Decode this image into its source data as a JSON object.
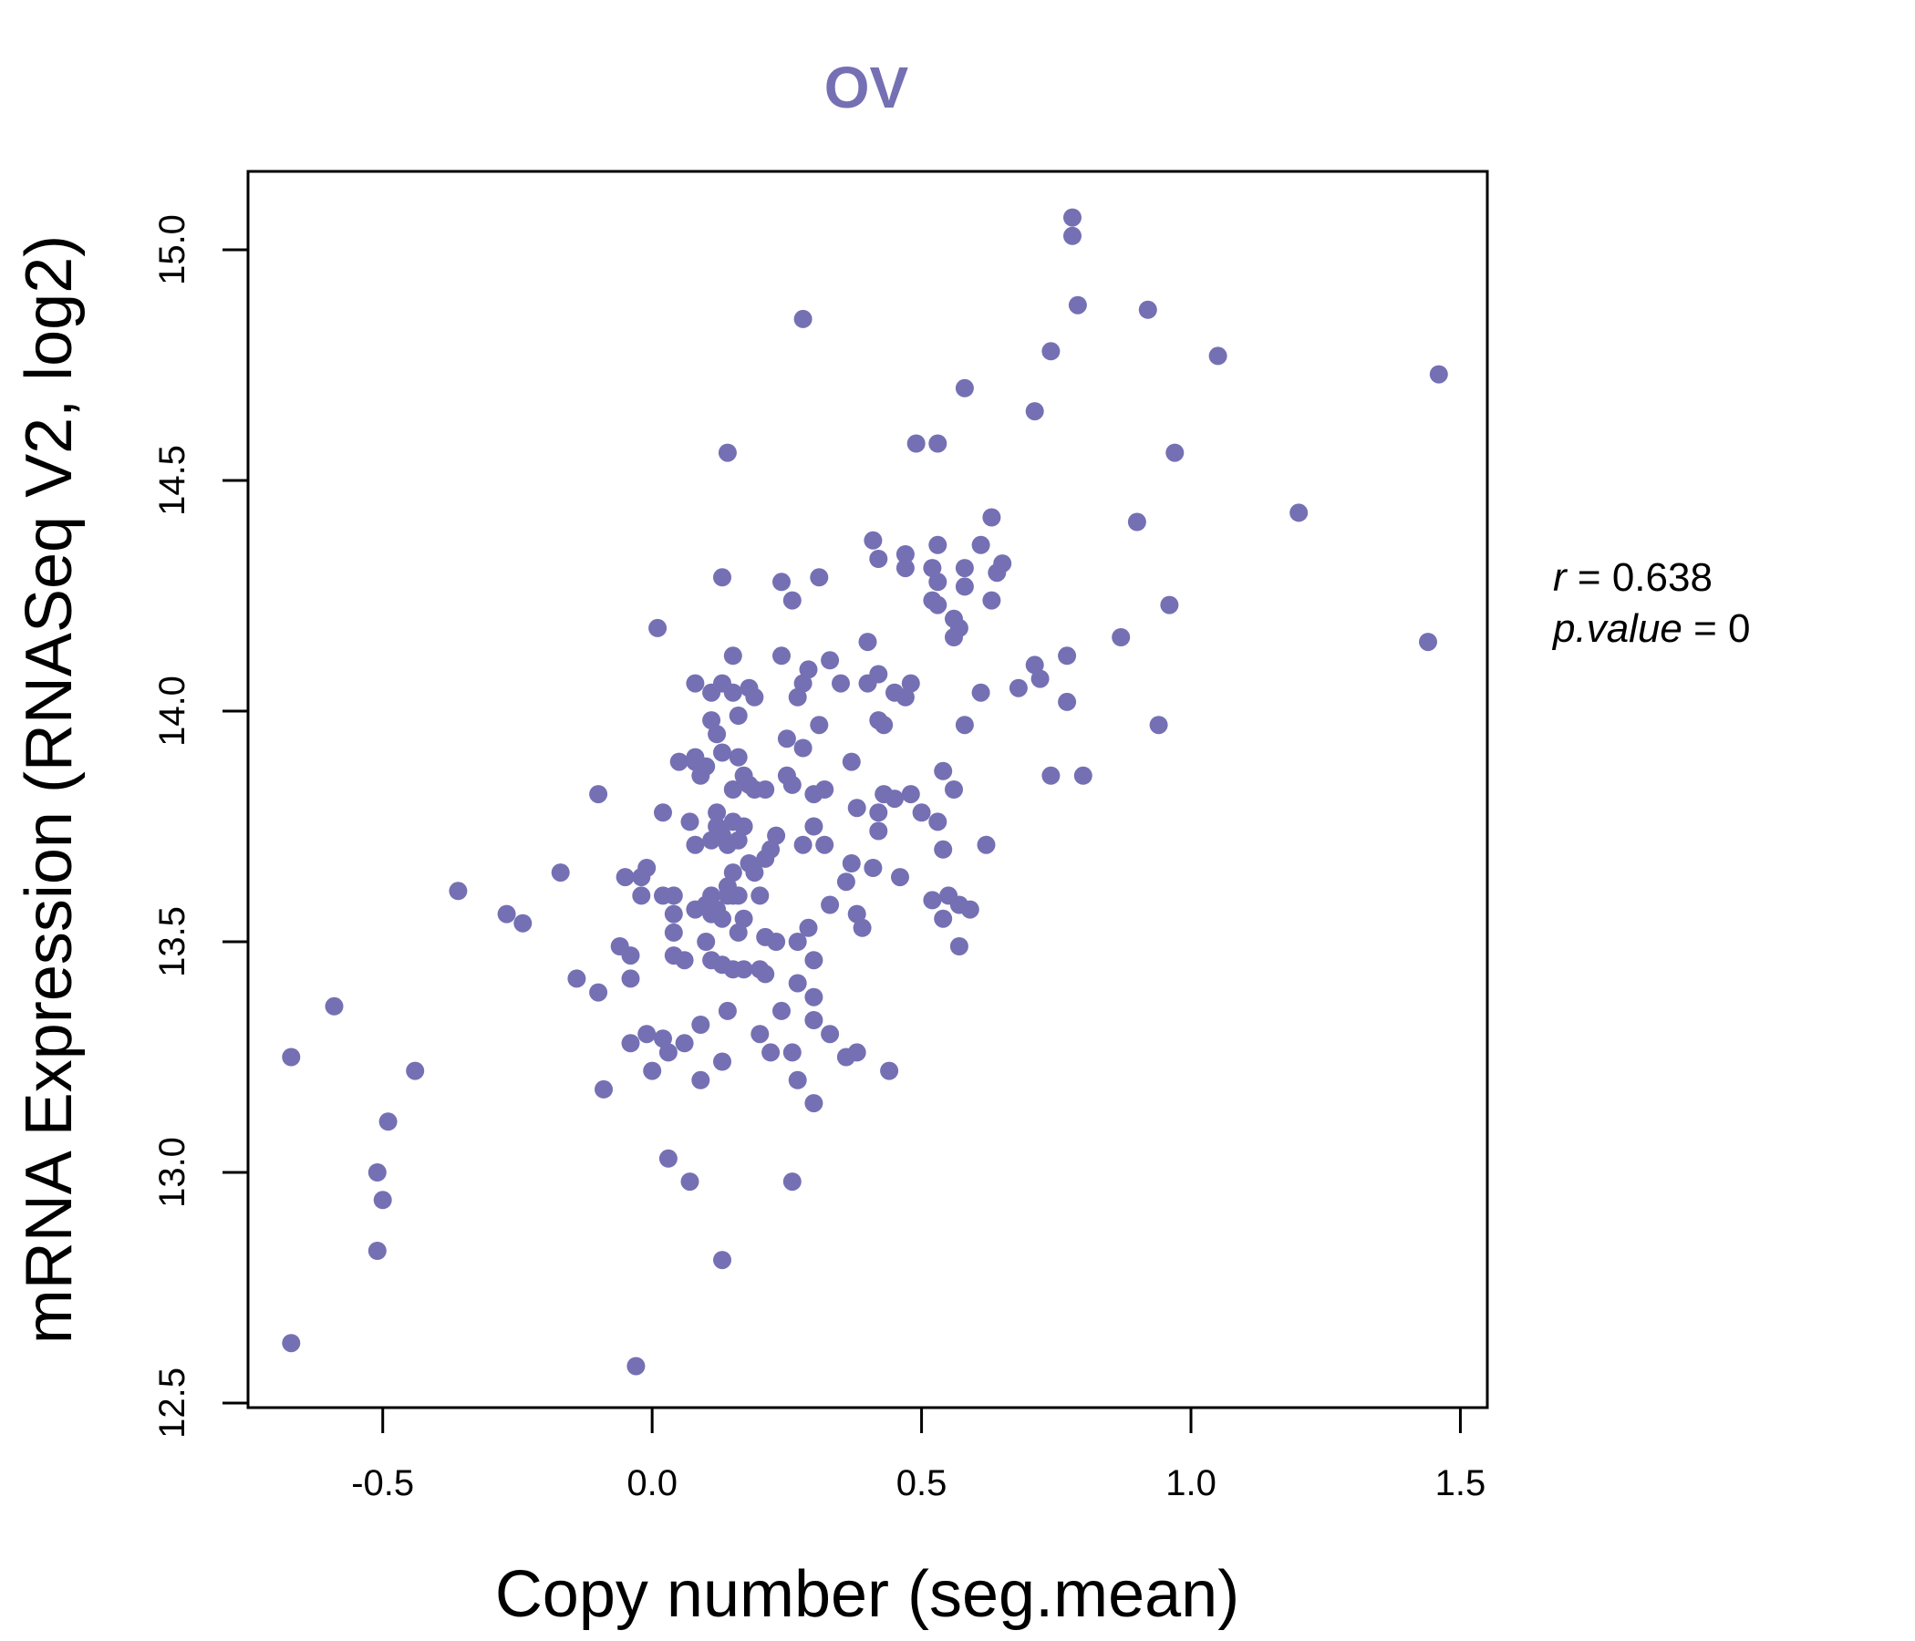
{
  "colors": {
    "accent": "#7570B3",
    "axis": "#000000",
    "background": "#FFFFFF"
  },
  "chart_data": {
    "type": "scatter",
    "title": "OV",
    "xlabel": "Copy number (seg.mean)",
    "ylabel": "mRNA Expression (RNASeq V2, log2)",
    "xlim": [
      -0.75,
      1.55
    ],
    "ylim": [
      12.49,
      15.17
    ],
    "xticks": [
      "-0.5",
      "0.0",
      "0.5",
      "1.0",
      "1.5"
    ],
    "xtick_values": [
      -0.5,
      0.0,
      0.5,
      1.0,
      1.5
    ],
    "yticks": [
      "12.5",
      "13.0",
      "13.5",
      "14.0",
      "14.5",
      "15.0"
    ],
    "ytick_values": [
      12.5,
      13.0,
      13.5,
      14.0,
      14.5,
      15.0
    ],
    "grid": false,
    "stats": {
      "r_label": "r",
      "r_value": "0.638",
      "p_label": "p.value",
      "p_value": "0"
    },
    "points": [
      [
        -0.67,
        12.63
      ],
      [
        -0.67,
        13.25
      ],
      [
        -0.59,
        13.36
      ],
      [
        -0.51,
        13.0
      ],
      [
        -0.5,
        12.94
      ],
      [
        -0.51,
        12.83
      ],
      [
        -0.49,
        13.11
      ],
      [
        -0.44,
        13.22
      ],
      [
        -0.36,
        13.61
      ],
      [
        -0.27,
        13.56
      ],
      [
        -0.24,
        13.54
      ],
      [
        -0.17,
        13.65
      ],
      [
        -0.14,
        13.42
      ],
      [
        -0.1,
        13.82
      ],
      [
        -0.1,
        13.39
      ],
      [
        -0.09,
        13.18
      ],
      [
        -0.06,
        13.49
      ],
      [
        -0.05,
        13.64
      ],
      [
        -0.04,
        13.47
      ],
      [
        -0.04,
        13.42
      ],
      [
        -0.04,
        13.28
      ],
      [
        -0.03,
        12.58
      ],
      [
        -0.02,
        13.64
      ],
      [
        -0.02,
        13.6
      ],
      [
        -0.01,
        13.66
      ],
      [
        -0.01,
        13.3
      ],
      [
        0.0,
        13.22
      ],
      [
        0.01,
        14.18
      ],
      [
        0.02,
        13.78
      ],
      [
        0.02,
        13.6
      ],
      [
        0.02,
        13.29
      ],
      [
        0.03,
        13.26
      ],
      [
        0.03,
        13.03
      ],
      [
        0.04,
        13.6
      ],
      [
        0.04,
        13.56
      ],
      [
        0.04,
        13.52
      ],
      [
        0.04,
        13.47
      ],
      [
        0.05,
        13.89
      ],
      [
        0.06,
        13.46
      ],
      [
        0.06,
        13.28
      ],
      [
        0.07,
        13.76
      ],
      [
        0.07,
        12.98
      ],
      [
        0.08,
        13.71
      ],
      [
        0.08,
        13.57
      ],
      [
        0.08,
        13.89
      ],
      [
        0.08,
        13.9
      ],
      [
        0.08,
        14.06
      ],
      [
        0.09,
        13.86
      ],
      [
        0.09,
        13.32
      ],
      [
        0.09,
        13.2
      ],
      [
        0.1,
        13.88
      ],
      [
        0.1,
        13.5
      ],
      [
        0.1,
        13.58
      ],
      [
        0.11,
        13.72
      ],
      [
        0.11,
        13.6
      ],
      [
        0.11,
        13.56
      ],
      [
        0.11,
        13.46
      ],
      [
        0.11,
        14.04
      ],
      [
        0.11,
        13.98
      ],
      [
        0.12,
        13.78
      ],
      [
        0.12,
        13.75
      ],
      [
        0.12,
        13.57
      ],
      [
        0.12,
        13.95
      ],
      [
        0.13,
        14.06
      ],
      [
        0.13,
        13.91
      ],
      [
        0.13,
        13.73
      ],
      [
        0.13,
        13.55
      ],
      [
        0.13,
        13.45
      ],
      [
        0.13,
        14.29
      ],
      [
        0.13,
        12.81
      ],
      [
        0.13,
        13.24
      ],
      [
        0.14,
        13.71
      ],
      [
        0.14,
        14.56
      ],
      [
        0.14,
        13.62
      ],
      [
        0.14,
        13.35
      ],
      [
        0.14,
        13.6
      ],
      [
        0.15,
        13.83
      ],
      [
        0.15,
        13.76
      ],
      [
        0.15,
        13.65
      ],
      [
        0.15,
        13.6
      ],
      [
        0.15,
        13.44
      ],
      [
        0.15,
        14.12
      ],
      [
        0.15,
        14.04
      ],
      [
        0.16,
        13.99
      ],
      [
        0.16,
        13.9
      ],
      [
        0.16,
        13.72
      ],
      [
        0.16,
        13.6
      ],
      [
        0.16,
        13.52
      ],
      [
        0.17,
        13.86
      ],
      [
        0.17,
        13.75
      ],
      [
        0.17,
        13.55
      ],
      [
        0.17,
        13.44
      ],
      [
        0.18,
        13.84
      ],
      [
        0.18,
        13.67
      ],
      [
        0.18,
        14.05
      ],
      [
        0.19,
        13.83
      ],
      [
        0.19,
        13.65
      ],
      [
        0.19,
        14.03
      ],
      [
        0.2,
        13.6
      ],
      [
        0.2,
        13.44
      ],
      [
        0.2,
        13.3
      ],
      [
        0.21,
        13.83
      ],
      [
        0.21,
        13.68
      ],
      [
        0.21,
        13.43
      ],
      [
        0.21,
        13.51
      ],
      [
        0.22,
        13.7
      ],
      [
        0.22,
        13.26
      ],
      [
        0.23,
        13.73
      ],
      [
        0.23,
        13.5
      ],
      [
        0.24,
        14.28
      ],
      [
        0.24,
        14.12
      ],
      [
        0.24,
        13.35
      ],
      [
        0.25,
        13.94
      ],
      [
        0.25,
        13.86
      ],
      [
        0.26,
        13.26
      ],
      [
        0.26,
        14.24
      ],
      [
        0.26,
        13.84
      ],
      [
        0.26,
        12.98
      ],
      [
        0.27,
        14.03
      ],
      [
        0.27,
        13.5
      ],
      [
        0.27,
        13.41
      ],
      [
        0.27,
        13.2
      ],
      [
        0.28,
        14.85
      ],
      [
        0.28,
        14.06
      ],
      [
        0.28,
        13.92
      ],
      [
        0.28,
        13.71
      ],
      [
        0.29,
        13.53
      ],
      [
        0.29,
        14.09
      ],
      [
        0.3,
        13.82
      ],
      [
        0.3,
        13.75
      ],
      [
        0.3,
        13.46
      ],
      [
        0.3,
        13.38
      ],
      [
        0.3,
        13.33
      ],
      [
        0.3,
        13.15
      ],
      [
        0.31,
        14.29
      ],
      [
        0.31,
        13.97
      ],
      [
        0.32,
        13.83
      ],
      [
        0.32,
        13.71
      ],
      [
        0.33,
        14.11
      ],
      [
        0.33,
        13.58
      ],
      [
        0.33,
        13.3
      ],
      [
        0.35,
        14.06
      ],
      [
        0.36,
        13.63
      ],
      [
        0.36,
        13.25
      ],
      [
        0.37,
        13.89
      ],
      [
        0.37,
        13.67
      ],
      [
        0.38,
        13.79
      ],
      [
        0.38,
        13.56
      ],
      [
        0.38,
        13.26
      ],
      [
        0.39,
        13.53
      ],
      [
        0.4,
        14.15
      ],
      [
        0.4,
        14.06
      ],
      [
        0.41,
        14.37
      ],
      [
        0.41,
        13.66
      ],
      [
        0.42,
        14.33
      ],
      [
        0.42,
        14.08
      ],
      [
        0.42,
        13.98
      ],
      [
        0.42,
        13.78
      ],
      [
        0.42,
        13.74
      ],
      [
        0.43,
        13.82
      ],
      [
        0.43,
        13.97
      ],
      [
        0.44,
        13.22
      ],
      [
        0.45,
        13.81
      ],
      [
        0.45,
        14.04
      ],
      [
        0.46,
        13.64
      ],
      [
        0.47,
        14.34
      ],
      [
        0.47,
        14.31
      ],
      [
        0.47,
        14.03
      ],
      [
        0.48,
        14.06
      ],
      [
        0.48,
        13.82
      ],
      [
        0.49,
        14.58
      ],
      [
        0.5,
        13.78
      ],
      [
        0.52,
        14.31
      ],
      [
        0.52,
        14.24
      ],
      [
        0.52,
        13.59
      ],
      [
        0.53,
        14.58
      ],
      [
        0.53,
        14.36
      ],
      [
        0.53,
        14.28
      ],
      [
        0.53,
        14.23
      ],
      [
        0.53,
        13.76
      ],
      [
        0.54,
        13.87
      ],
      [
        0.54,
        13.55
      ],
      [
        0.54,
        13.7
      ],
      [
        0.55,
        13.6
      ],
      [
        0.56,
        13.83
      ],
      [
        0.56,
        14.2
      ],
      [
        0.56,
        14.16
      ],
      [
        0.57,
        14.18
      ],
      [
        0.57,
        13.58
      ],
      [
        0.57,
        13.49
      ],
      [
        0.58,
        14.7
      ],
      [
        0.58,
        14.31
      ],
      [
        0.58,
        14.27
      ],
      [
        0.58,
        13.97
      ],
      [
        0.59,
        13.57
      ],
      [
        0.61,
        14.36
      ],
      [
        0.61,
        14.04
      ],
      [
        0.62,
        13.71
      ],
      [
        0.63,
        14.42
      ],
      [
        0.63,
        14.24
      ],
      [
        0.64,
        14.3
      ],
      [
        0.65,
        14.32
      ],
      [
        0.68,
        14.05
      ],
      [
        0.71,
        14.65
      ],
      [
        0.71,
        14.1
      ],
      [
        0.72,
        14.07
      ],
      [
        0.74,
        14.78
      ],
      [
        0.74,
        13.86
      ],
      [
        0.77,
        14.12
      ],
      [
        0.77,
        14.02
      ],
      [
        0.78,
        15.03
      ],
      [
        0.78,
        15.07
      ],
      [
        0.79,
        14.88
      ],
      [
        0.8,
        13.86
      ],
      [
        0.87,
        14.16
      ],
      [
        0.9,
        14.41
      ],
      [
        0.92,
        14.87
      ],
      [
        0.94,
        13.97
      ],
      [
        0.96,
        14.23
      ],
      [
        0.97,
        14.56
      ],
      [
        1.05,
        14.77
      ],
      [
        1.2,
        14.43
      ],
      [
        1.44,
        14.15
      ],
      [
        1.46,
        14.73
      ]
    ]
  }
}
